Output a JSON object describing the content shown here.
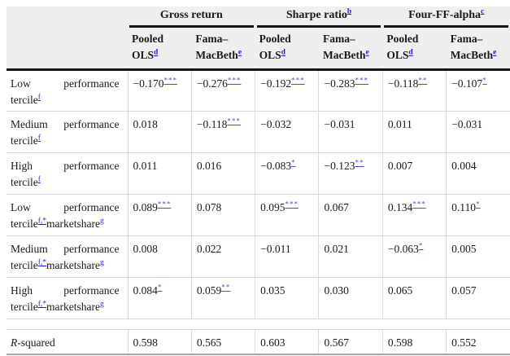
{
  "table": {
    "groups": [
      {
        "label": "Gross return",
        "sup": ""
      },
      {
        "label": "Sharpe ratio",
        "sup": "b"
      },
      {
        "label": "Four-FF-alpha",
        "sup": "c"
      }
    ],
    "subheaders": [
      {
        "line1": "Pooled",
        "line2": "OLS",
        "sup": "d"
      },
      {
        "line1": "Fama–",
        "line2": "MacBeth",
        "sup": "e"
      },
      {
        "line1": "Pooled",
        "line2": "OLS",
        "sup": "d"
      },
      {
        "line1": "Fama–",
        "line2": "MacBeth",
        "sup": "e"
      },
      {
        "line1": "Pooled",
        "line2": "OLS",
        "sup": "d"
      },
      {
        "line1": "Fama–",
        "line2": "MacBeth",
        "sup": "e"
      }
    ],
    "rows": [
      {
        "label": {
          "italic": "",
          "pre": "Low performance tercile",
          "sup1": "f",
          "mid": "",
          "sup2": ""
        },
        "cells": [
          {
            "value": "−0.170",
            "stars": "***"
          },
          {
            "value": "−0.276",
            "stars": "***"
          },
          {
            "value": "−0.192",
            "stars": "***"
          },
          {
            "value": "−0.283",
            "stars": "***"
          },
          {
            "value": "−0.118",
            "stars": "**"
          },
          {
            "value": "−0.107",
            "stars": "*"
          }
        ]
      },
      {
        "label": {
          "italic": "",
          "pre": "Medium performance tercile",
          "sup1": "f",
          "mid": "",
          "sup2": ""
        },
        "cells": [
          {
            "value": "0.018",
            "stars": ""
          },
          {
            "value": "−0.118",
            "stars": "***"
          },
          {
            "value": "−0.032",
            "stars": ""
          },
          {
            "value": "−0.031",
            "stars": ""
          },
          {
            "value": "0.011",
            "stars": ""
          },
          {
            "value": "−0.031",
            "stars": ""
          }
        ]
      },
      {
        "label": {
          "italic": "",
          "pre": "High performance tercile",
          "sup1": "f",
          "mid": "",
          "sup2": ""
        },
        "cells": [
          {
            "value": "0.011",
            "stars": ""
          },
          {
            "value": "0.016",
            "stars": ""
          },
          {
            "value": "−0.083",
            "stars": "*"
          },
          {
            "value": "−0.123",
            "stars": "**"
          },
          {
            "value": "0.007",
            "stars": ""
          },
          {
            "value": "0.004",
            "stars": ""
          }
        ]
      },
      {
        "label": {
          "italic": "",
          "pre": "Low performance tercile",
          "sup1": "f,*",
          "mid": "marketshare",
          "sup2": "g"
        },
        "cells": [
          {
            "value": "0.089",
            "stars": "***"
          },
          {
            "value": "0.078",
            "stars": ""
          },
          {
            "value": "0.095",
            "stars": "***"
          },
          {
            "value": "0.067",
            "stars": ""
          },
          {
            "value": "0.134",
            "stars": "***"
          },
          {
            "value": "0.110",
            "stars": "*"
          }
        ]
      },
      {
        "label": {
          "italic": "",
          "pre": "Medium performance tercile",
          "sup1": "f,*",
          "mid": "marketshare",
          "sup2": "g"
        },
        "cells": [
          {
            "value": "0.008",
            "stars": ""
          },
          {
            "value": "0.022",
            "stars": ""
          },
          {
            "value": "−0.011",
            "stars": ""
          },
          {
            "value": "0.021",
            "stars": ""
          },
          {
            "value": "−0.063",
            "stars": "*"
          },
          {
            "value": "0.005",
            "stars": ""
          }
        ]
      },
      {
        "label": {
          "italic": "",
          "pre": "High performance tercile",
          "sup1": "f,*",
          "mid": "marketshare",
          "sup2": "g"
        },
        "cells": [
          {
            "value": "0.084",
            "stars": "*"
          },
          {
            "value": "0.059",
            "stars": "**"
          },
          {
            "value": "0.035",
            "stars": ""
          },
          {
            "value": "0.030",
            "stars": ""
          },
          {
            "value": "0.065",
            "stars": ""
          },
          {
            "value": "0.057",
            "stars": ""
          }
        ]
      },
      {
        "label": {
          "italic": "R",
          "pre": "-squared",
          "sup1": "",
          "mid": "",
          "sup2": ""
        },
        "cells": [
          {
            "value": "0.598",
            "stars": ""
          },
          {
            "value": "0.565",
            "stars": ""
          },
          {
            "value": "0.603",
            "stars": ""
          },
          {
            "value": "0.567",
            "stars": ""
          },
          {
            "value": "0.598",
            "stars": ""
          },
          {
            "value": "0.552",
            "stars": ""
          }
        ]
      }
    ],
    "colors": {
      "header_bg": "#efefef",
      "rule_black": "#161616",
      "grid_gray": "#d9d9d9",
      "bottom_rule_gray": "#a8a8a8",
      "link_blue": "#2222cc",
      "star_blue": "#4d4dd0"
    }
  }
}
